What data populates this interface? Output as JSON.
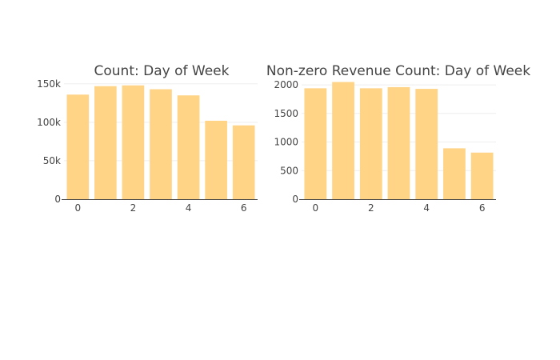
{
  "colors": {
    "bar": "#FFD27F",
    "text": "#444444",
    "grid": "#EEEEEE",
    "axis": "#444444"
  },
  "chart_data": [
    {
      "type": "bar",
      "title": "Count: Day of Week",
      "xlabel": "",
      "ylabel": "",
      "x": [
        0,
        1,
        2,
        3,
        4,
        5,
        6
      ],
      "values": [
        136000,
        147000,
        148000,
        143000,
        135000,
        102000,
        96000
      ],
      "x_ticks": [
        0,
        2,
        4,
        6
      ],
      "x_tick_labels": [
        "0",
        "2",
        "4",
        "6"
      ],
      "y_ticks": [
        0,
        50000,
        100000,
        150000
      ],
      "y_tick_labels": [
        "0",
        "50k",
        "100k",
        "150k"
      ],
      "xlim": [
        -0.5,
        6.5
      ],
      "ylim": [
        0,
        155000
      ],
      "grid": true
    },
    {
      "type": "bar",
      "title": "Non-zero Revenue Count: Day of Week",
      "xlabel": "",
      "ylabel": "",
      "x": [
        0,
        1,
        2,
        3,
        4,
        5,
        6
      ],
      "values": [
        1940,
        2050,
        1940,
        1960,
        1930,
        890,
        815
      ],
      "x_ticks": [
        0,
        2,
        4,
        6
      ],
      "x_tick_labels": [
        "0",
        "2",
        "4",
        "6"
      ],
      "y_ticks": [
        0,
        500,
        1000,
        1500,
        2000
      ],
      "y_tick_labels": [
        "0",
        "500",
        "1000",
        "1500",
        "2000"
      ],
      "xlim": [
        -0.5,
        6.5
      ],
      "ylim": [
        0,
        2085
      ],
      "grid": true
    }
  ]
}
